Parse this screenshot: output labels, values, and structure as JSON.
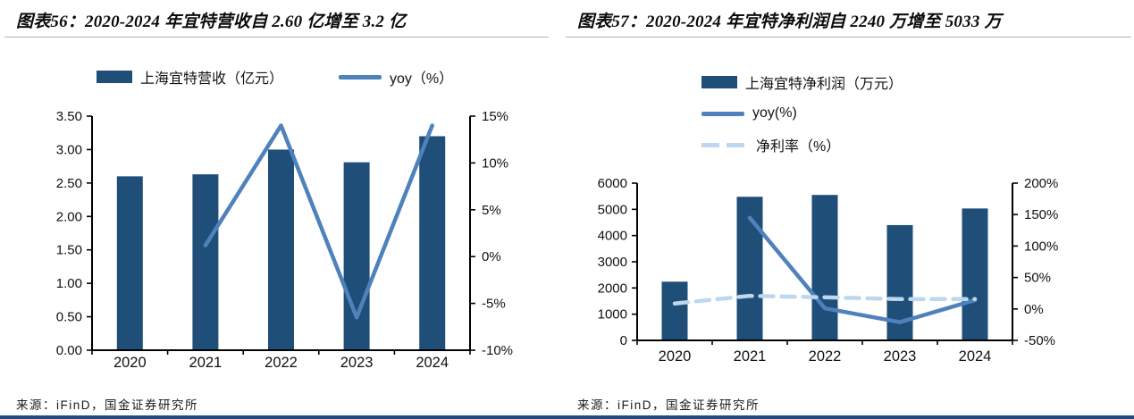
{
  "footer": {
    "accent_color": "#24477C"
  },
  "charts": [
    {
      "title": "图表56：2020-2024 年宜特营收自 2.60 亿增至 3.2 亿",
      "source": "来源：iFinD，国金证券研究所",
      "chart_data": {
        "type": "bar+line",
        "categories": [
          "2020",
          "2021",
          "2022",
          "2023",
          "2024"
        ],
        "series": [
          {
            "name": "上海宜特营收（亿元）",
            "type": "bar",
            "axis": "left",
            "color": "#1F4E79",
            "dashed": false,
            "values": [
              2.6,
              2.63,
              3.0,
              2.81,
              3.2
            ]
          },
          {
            "name": "yoy（%）",
            "type": "line",
            "axis": "right",
            "color": "#4F81BD",
            "dashed": false,
            "values": [
              null,
              1.2,
              14.0,
              -6.5,
              14.0
            ]
          }
        ],
        "left_axis": {
          "min": 0,
          "max": 3.5,
          "tick_values": [
            0,
            0.5,
            1,
            1.5,
            2,
            2.5,
            3,
            3.5
          ],
          "ticks": [
            "0.00",
            "0.50",
            "1.00",
            "1.50",
            "2.00",
            "2.50",
            "3.00",
            "3.50"
          ]
        },
        "right_axis": {
          "min": -10,
          "max": 15,
          "tick_values": [
            -10,
            -5,
            0,
            5,
            10,
            15
          ],
          "ticks": [
            "-10%",
            "-5%",
            "0%",
            "5%",
            "10%",
            "15%"
          ]
        },
        "grid": false,
        "legend_position": "top-horizontal"
      }
    },
    {
      "title": "图表57：2020-2024 年宜特净利润自 2240 万增至 5033 万",
      "source": "来源：iFinD，国金证券研究所",
      "chart_data": {
        "type": "bar+line",
        "categories": [
          "2020",
          "2021",
          "2022",
          "2023",
          "2024"
        ],
        "series": [
          {
            "name": "上海宜特净利润（万元）",
            "type": "bar",
            "axis": "left",
            "color": "#1F4E79",
            "dashed": false,
            "values": [
              2240,
              5480,
              5550,
              4400,
              5033
            ]
          },
          {
            "name": "yoy(%)",
            "type": "line",
            "axis": "right",
            "color": "#4F81BD",
            "dashed": false,
            "values": [
              null,
              145,
              1,
              -21,
              14
            ]
          },
          {
            "name": "净利率（%）",
            "type": "line",
            "axis": "right",
            "color": "#BDD7EE",
            "dashed": true,
            "values": [
              8.6,
              20.8,
              18.5,
              15.7,
              15.7
            ]
          }
        ],
        "left_axis": {
          "min": 0,
          "max": 6000,
          "tick_values": [
            0,
            1000,
            2000,
            3000,
            4000,
            5000,
            6000
          ],
          "ticks": [
            "0",
            "1000",
            "2000",
            "3000",
            "4000",
            "5000",
            "6000"
          ]
        },
        "right_axis": {
          "min": -50,
          "max": 200,
          "tick_values": [
            -50,
            0,
            50,
            100,
            150,
            200
          ],
          "ticks": [
            "-50%",
            "0%",
            "50%",
            "100%",
            "150%",
            "200%"
          ]
        },
        "grid": false,
        "legend_position": "top-left-stacked"
      }
    }
  ]
}
